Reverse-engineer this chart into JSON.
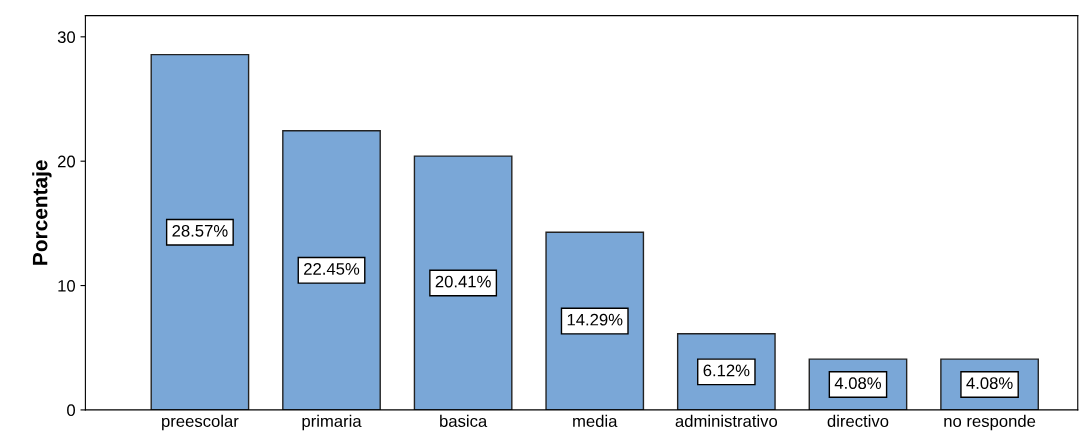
{
  "chart_data": {
    "type": "bar",
    "ylabel": "Porcentaje",
    "categories": [
      "preescolar",
      "primaria",
      "basica",
      "media",
      "administrativo",
      "directivo",
      "no responde"
    ],
    "values": [
      28.57,
      22.45,
      20.41,
      14.29,
      6.12,
      4.08,
      4.08
    ],
    "value_labels": [
      "28.57%",
      "22.45%",
      "20.41%",
      "14.29%",
      "6.12%",
      "4.08%",
      "4.08%"
    ],
    "color": "#7aa7d7",
    "ylim": [
      0,
      31.7
    ],
    "yticks": [
      0,
      10,
      20,
      30
    ],
    "grid": false,
    "legend": false
  }
}
